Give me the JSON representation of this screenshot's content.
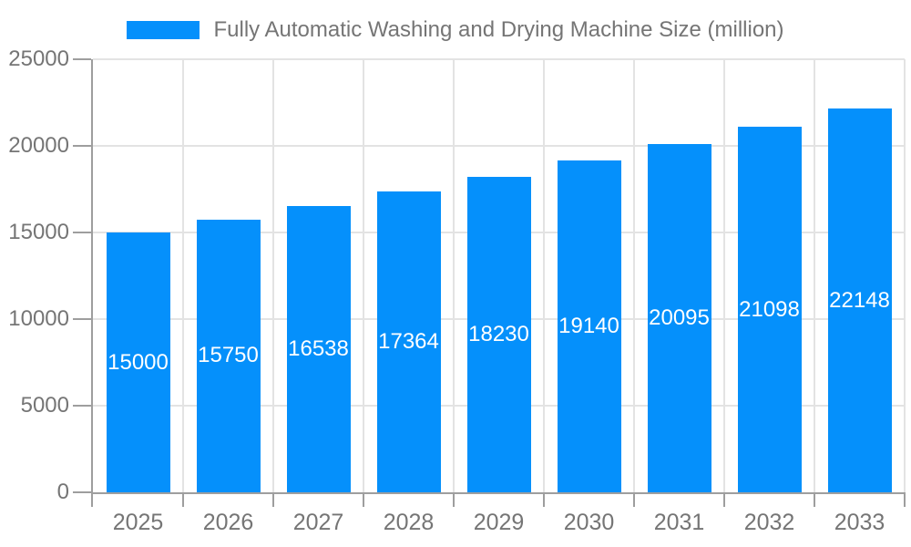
{
  "legend": {
    "label": "Fully Automatic Washing and Drying Machine Size (million)",
    "swatch_color": "#0590FB"
  },
  "chart_data": {
    "type": "bar",
    "title": "Fully Automatic Washing and Drying Machine Size (million)",
    "categories": [
      "2025",
      "2026",
      "2027",
      "2028",
      "2029",
      "2030",
      "2031",
      "2032",
      "2033"
    ],
    "values": [
      15000,
      15750,
      16538,
      17364,
      18230,
      19140,
      20095,
      21098,
      22148
    ],
    "xlabel": "",
    "ylabel": "",
    "ylim": [
      0,
      25000
    ],
    "yticks": [
      0,
      5000,
      10000,
      15000,
      20000,
      25000
    ],
    "grid": true,
    "legend_position": "top",
    "bar_color": "#0590FB",
    "value_label_color": "#ffffff",
    "axis_color": "#9e9e9e",
    "grid_color": "#e3e3e3",
    "text_color": "#757575"
  }
}
